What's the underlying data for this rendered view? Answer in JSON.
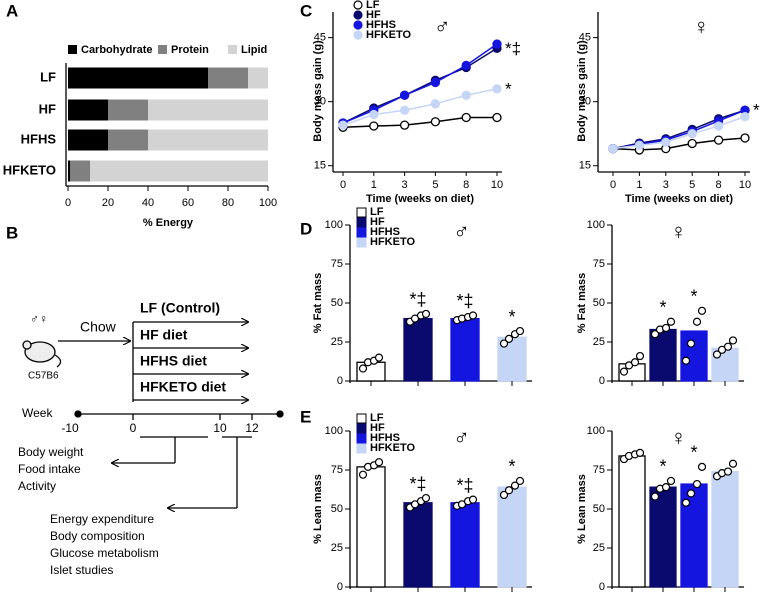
{
  "panel_labels": [
    "A",
    "B",
    "C",
    "D",
    "E"
  ],
  "chart_data": [
    {
      "type": "hbar_stacked",
      "categories": [
        "LF",
        "HF",
        "HFHS",
        "HFKETO"
      ],
      "series": [
        {
          "name": "Carbohydrate",
          "color": "#000000",
          "values": [
            70,
            20,
            20,
            1
          ]
        },
        {
          "name": "Protein",
          "color": "#808080",
          "values": [
            20,
            20,
            20,
            10
          ]
        },
        {
          "name": "Lipid",
          "color": "#d3d3d3",
          "values": [
            10,
            60,
            60,
            89
          ]
        }
      ],
      "xlim": [
        0,
        100
      ],
      "xticks": [
        0,
        20,
        40,
        60,
        80,
        100
      ],
      "xlabel": "% Energy",
      "legend": "top"
    },
    {
      "type": "line",
      "symbol": "♂",
      "categories": [
        "0",
        "1",
        "3",
        "5",
        "8",
        "10"
      ],
      "series": [
        {
          "name": "LF",
          "color": "#ffffff",
          "values": [
            24,
            24.3,
            24.5,
            25.3,
            26.3,
            26.3
          ]
        },
        {
          "name": "HF",
          "color": "#0a0a6e",
          "values": [
            25,
            28.5,
            31.5,
            35,
            38,
            42.5
          ],
          "end_label": "*‡"
        },
        {
          "name": "HFHS",
          "color": "#1515e0",
          "values": [
            25,
            28,
            31.5,
            34.5,
            38.5,
            43.5
          ]
        },
        {
          "name": "HFKETO",
          "color": "#c5d5f5",
          "values": [
            24.5,
            27,
            28,
            29.5,
            31.5,
            33
          ],
          "end_label": "*"
        }
      ],
      "ylim": [
        14,
        51
      ],
      "yticks": [
        15,
        30,
        45
      ],
      "ylabel": "Body mass gain (g)",
      "xlabel": "Time (weeks on diet)",
      "legend": "top-left"
    },
    {
      "type": "line",
      "symbol": "♀",
      "categories": [
        "0",
        "1",
        "3",
        "5",
        "8",
        "10"
      ],
      "series": [
        {
          "color": "#ffffff",
          "values": [
            19,
            18.7,
            19,
            20.2,
            21,
            21.5
          ]
        },
        {
          "color": "#0a0a6e",
          "values": [
            19,
            20.3,
            21.3,
            23.5,
            26,
            28
          ],
          "end_label": "*"
        },
        {
          "color": "#1515e0",
          "values": [
            19,
            20,
            21,
            23,
            25.5,
            28
          ]
        },
        {
          "color": "#c5d5f5",
          "values": [
            19,
            19.8,
            20.5,
            22.5,
            24.3,
            26.5
          ]
        }
      ],
      "ylim": [
        14,
        51
      ],
      "yticks": [
        15,
        30,
        45
      ],
      "ylabel": "Body mass gain (g)",
      "xlabel": "Time (weeks on diet)",
      "legend": false
    },
    {
      "type": "bar_dots",
      "symbol": "♂",
      "categories": [
        "LF",
        "HF",
        "HFHS",
        "HFKETO"
      ],
      "values": [
        12,
        40,
        40,
        28
      ],
      "colors": [
        "#ffffff",
        "#0a0a6e",
        "#1515e0",
        "#c5d5f5"
      ],
      "points": [
        [
          8,
          12,
          13,
          15
        ],
        [
          38,
          40,
          42,
          43
        ],
        [
          39,
          40,
          41,
          42
        ],
        [
          24,
          27,
          30,
          32
        ]
      ],
      "annotations": [
        null,
        "*‡",
        "*‡",
        "*"
      ],
      "ylim": [
        0,
        100
      ],
      "yticks": [
        0,
        25,
        50,
        75,
        100
      ],
      "ylabel": "% Fat mass",
      "legend": "top-left"
    },
    {
      "type": "bar_dots",
      "symbol": "♀",
      "categories": [
        null,
        null,
        null,
        null
      ],
      "values": [
        11,
        33,
        32,
        21
      ],
      "colors": [
        "#ffffff",
        "#0a0a6e",
        "#1515e0",
        "#c5d5f5"
      ],
      "points": [
        [
          6,
          10,
          12,
          16
        ],
        [
          30,
          33,
          34,
          38
        ],
        [
          13,
          24,
          38,
          45
        ],
        [
          17,
          20,
          22,
          26
        ]
      ],
      "annotations": [
        null,
        "*",
        "*",
        null
      ],
      "ylim": [
        0,
        100
      ],
      "yticks": [
        0,
        25,
        50,
        75,
        100
      ],
      "ylabel": "% Fat mass",
      "legend": false
    },
    {
      "type": "bar_dots",
      "symbol": "♂",
      "categories": [
        "LF",
        "HF",
        "HFHS",
        "HFKETO"
      ],
      "values": [
        77,
        54,
        54,
        64
      ],
      "colors": [
        "#ffffff",
        "#0a0a6e",
        "#1515e0",
        "#c5d5f5"
      ],
      "points": [
        [
          72,
          77,
          78,
          80
        ],
        [
          51,
          53,
          55,
          57
        ],
        [
          52,
          53,
          55,
          56
        ],
        [
          59,
          62,
          65,
          68
        ]
      ],
      "annotations": [
        null,
        "*‡",
        "*‡",
        "*"
      ],
      "ylim": [
        0,
        100
      ],
      "yticks": [
        0,
        25,
        50,
        75,
        100
      ],
      "ylabel": "% Lean mass",
      "legend": "top-left"
    },
    {
      "type": "bar_dots",
      "symbol": "♀",
      "categories": [
        null,
        null,
        null,
        null
      ],
      "values": [
        84,
        64,
        66,
        74
      ],
      "colors": [
        "#ffffff",
        "#0a0a6e",
        "#1515e0",
        "#c5d5f5"
      ],
      "points": [
        [
          82,
          84,
          85,
          86
        ],
        [
          58,
          63,
          64,
          68
        ],
        [
          54,
          60,
          66,
          77
        ],
        [
          71,
          73,
          74,
          79
        ]
      ],
      "annotations": [
        null,
        "*",
        "*",
        null
      ],
      "ylim": [
        0,
        100
      ],
      "yticks": [
        0,
        25,
        50,
        75,
        100
      ],
      "ylabel": "% Lean mass",
      "legend": false
    }
  ],
  "diagram": {
    "mouse_sex": "♂♀",
    "strain": "C57B6",
    "chow": "Chow",
    "diets": [
      "LF (Control)",
      "HF diet",
      "HFHS diet",
      "HFKETO diet"
    ],
    "week_label": "Week",
    "timeline_ticks": [
      "-10",
      "0",
      "10",
      "12"
    ],
    "early_measures": [
      "Body weight",
      "Food intake",
      "Activity"
    ],
    "late_measures": [
      "Energy expenditure",
      "Body composition",
      "Glucose metabolism",
      "Islet studies"
    ]
  }
}
